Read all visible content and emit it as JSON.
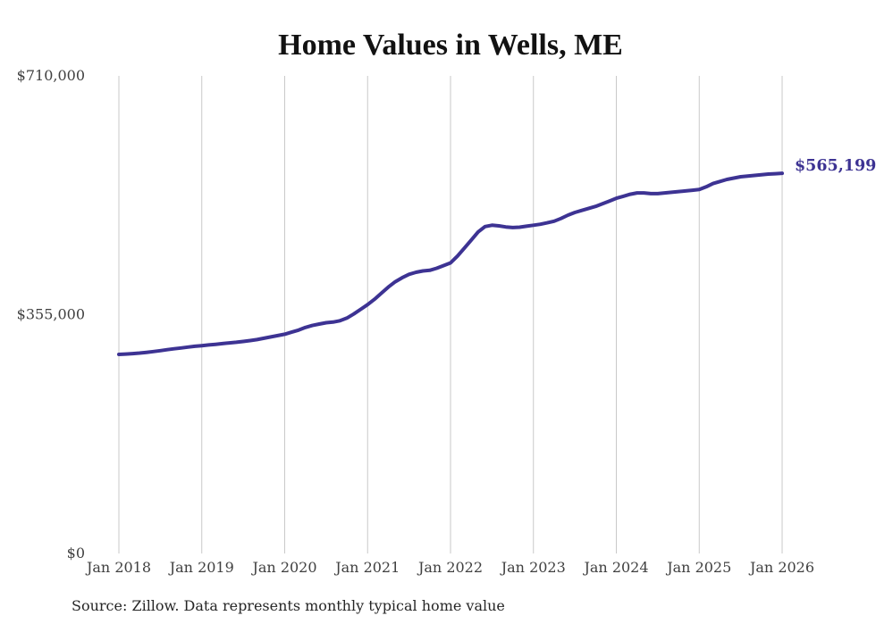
{
  "chart_data": {
    "type": "line",
    "title": "Home Values in Wells, ME",
    "source_note": "Source: Zillow. Data represents monthly typical home value",
    "end_label": "$565,199",
    "final_value": 565199,
    "line_color": "#3d3393",
    "grid_color": "#c9c9c9",
    "grid": "vertical-only",
    "legend": "none",
    "ylim": [
      0,
      710000
    ],
    "y_ticks": [
      {
        "label": "$0",
        "value": 0
      },
      {
        "label": "$355,000",
        "value": 355000
      },
      {
        "label": "$710,000",
        "value": 710000
      }
    ],
    "x_ticks": [
      "Jan 2018",
      "Jan 2019",
      "Jan 2020",
      "Jan 2021",
      "Jan 2022",
      "Jan 2023",
      "Jan 2024",
      "Jan 2025",
      "Jan 2026"
    ],
    "x_start": "Jan 2018",
    "x_end": "Jan 2026",
    "x_interval": "monthly",
    "series": [
      {
        "name": "Typical home value",
        "values": [
          296000,
          296500,
          297200,
          298000,
          299000,
          300200,
          301500,
          303000,
          304300,
          305500,
          306800,
          308000,
          309000,
          310000,
          311000,
          312000,
          313000,
          314000,
          315200,
          316500,
          318000,
          320000,
          322000,
          324000,
          326000,
          329000,
          332000,
          336000,
          339000,
          341000,
          343000,
          344000,
          346000,
          350000,
          356000,
          363000,
          370000,
          378000,
          387000,
          396000,
          404000,
          410000,
          415000,
          418000,
          420000,
          421000,
          424000,
          428000,
          432000,
          442000,
          454000,
          466000,
          478000,
          486000,
          488000,
          487000,
          485500,
          484500,
          485000,
          486500,
          488000,
          489500,
          491500,
          494000,
          498000,
          503000,
          507000,
          510000,
          513000,
          516000,
          520000,
          524000,
          528000,
          531000,
          534000,
          536000,
          536000,
          535000,
          535000,
          536000,
          537000,
          538000,
          539000,
          540000,
          541000,
          545000,
          550000,
          553000,
          556000,
          558000,
          560000,
          561000,
          562000,
          563000,
          564000,
          564600,
          565199
        ]
      }
    ]
  }
}
